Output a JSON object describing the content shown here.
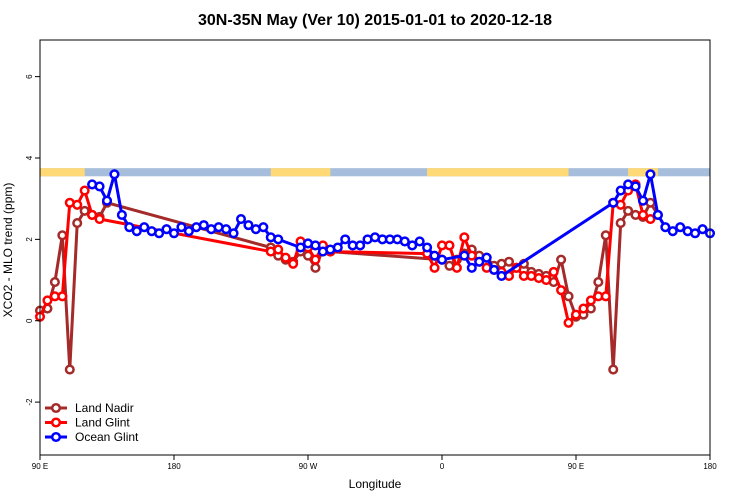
{
  "chart_data": {
    "type": "line",
    "title": "30N-35N May (Ver 10)   2015-01-01 to 2020-12-18",
    "xlabel": "Longitude",
    "ylabel": "XCO2 - MLO trend (ppm)",
    "xlim": [
      0,
      450
    ],
    "ylim": [
      -3.3,
      6.9
    ],
    "x_ticks": [
      0,
      90,
      180,
      270,
      360,
      450
    ],
    "x_tick_labels": [
      "90 E",
      "180",
      "90 W",
      "0",
      "90 E",
      "180"
    ],
    "y_ticks": [
      -2,
      0,
      2,
      4,
      6
    ],
    "y_tick_labels": [
      "-2",
      "0",
      "2",
      "4",
      "6"
    ],
    "legend_position": "bottom-left",
    "colors": {
      "land_nadir": "#a52a2a",
      "land_glint": "#ff0000",
      "ocean_glint": "#0000ff",
      "ocean_band": "#a6bddb",
      "land_band": "#ffd976"
    },
    "surface_band": {
      "y_range": [
        3.55,
        3.75
      ],
      "land_segments": [
        [
          0,
          30
        ],
        [
          155,
          195
        ],
        [
          260,
          355
        ],
        [
          395,
          415
        ]
      ]
    },
    "series": [
      {
        "name": "Land Nadir",
        "color": "#a52a2a",
        "x": [
          0,
          5,
          10,
          15,
          20,
          25,
          30,
          35,
          40,
          45,
          155,
          160,
          165,
          170,
          175,
          180,
          185,
          190,
          195,
          270,
          275,
          280,
          285,
          290,
          295,
          300,
          305,
          310,
          315,
          320,
          325,
          330,
          335,
          340,
          345,
          350,
          355,
          360,
          365,
          370,
          375,
          380,
          385,
          390,
          395,
          400,
          405,
          410,
          415
        ],
        "values": [
          0.25,
          0.3,
          0.95,
          2.1,
          -1.2,
          2.4,
          2.7,
          2.6,
          2.55,
          2.9,
          1.8,
          1.6,
          1.5,
          1.45,
          1.7,
          1.6,
          1.3,
          1.75,
          1.7,
          1.5,
          1.35,
          1.5,
          1.65,
          1.75,
          1.6,
          1.55,
          1.35,
          1.4,
          1.45,
          1.3,
          1.4,
          1.2,
          1.15,
          1.1,
          0.95,
          1.5,
          0.6,
          0.1,
          0.15,
          0.3,
          0.95,
          2.1,
          -1.2,
          2.4,
          2.7,
          2.6,
          2.55,
          2.9,
          2.6
        ]
      },
      {
        "name": "Land Glint",
        "color": "#ff0000",
        "x": [
          0,
          5,
          10,
          15,
          20,
          25,
          30,
          35,
          40,
          155,
          160,
          165,
          170,
          175,
          180,
          185,
          190,
          195,
          260,
          265,
          270,
          275,
          280,
          285,
          290,
          295,
          300,
          305,
          310,
          315,
          320,
          325,
          330,
          335,
          340,
          345,
          350,
          355,
          360,
          365,
          370,
          375,
          380,
          385,
          390,
          395,
          400,
          405,
          410
        ],
        "values": [
          0.1,
          0.5,
          0.6,
          0.6,
          2.9,
          2.85,
          3.2,
          2.6,
          2.5,
          1.7,
          1.75,
          1.55,
          1.4,
          1.95,
          1.8,
          1.5,
          1.85,
          1.7,
          1.65,
          1.3,
          1.85,
          1.85,
          1.3,
          2.05,
          1.6,
          1.45,
          1.3,
          1.25,
          1.2,
          1.1,
          1.3,
          1.1,
          1.1,
          1.05,
          1.0,
          1.2,
          0.75,
          -0.05,
          0.15,
          0.3,
          0.5,
          0.6,
          0.6,
          2.9,
          2.85,
          3.2,
          3.35,
          2.6,
          2.5
        ]
      },
      {
        "name": "Ocean Glint",
        "color": "#0000ff",
        "x": [
          35,
          40,
          45,
          50,
          55,
          60,
          65,
          70,
          75,
          80,
          85,
          90,
          95,
          100,
          105,
          110,
          115,
          120,
          125,
          130,
          135,
          140,
          145,
          150,
          155,
          160,
          175,
          180,
          185,
          190,
          195,
          200,
          205,
          210,
          215,
          220,
          225,
          230,
          235,
          240,
          245,
          250,
          255,
          260,
          265,
          270,
          285,
          290,
          295,
          300,
          305,
          310,
          385,
          390,
          395,
          400,
          405,
          410,
          415,
          420,
          425,
          430,
          435,
          440,
          445,
          450
        ],
        "values": [
          3.35,
          3.3,
          2.95,
          3.6,
          2.6,
          2.3,
          2.2,
          2.3,
          2.2,
          2.15,
          2.25,
          2.15,
          2.3,
          2.2,
          2.3,
          2.35,
          2.25,
          2.3,
          2.25,
          2.15,
          2.5,
          2.35,
          2.25,
          2.3,
          2.05,
          2.0,
          1.8,
          1.9,
          1.85,
          1.7,
          1.75,
          1.8,
          2.0,
          1.85,
          1.85,
          2.0,
          2.05,
          2.0,
          2.0,
          2.0,
          1.95,
          1.85,
          1.95,
          1.8,
          1.6,
          1.5,
          1.6,
          1.3,
          1.45,
          1.55,
          1.25,
          1.1,
          2.9,
          3.2,
          3.35,
          3.3,
          2.95,
          3.6,
          2.6,
          2.3,
          2.2,
          2.3,
          2.2,
          2.15,
          2.25,
          2.15
        ]
      }
    ]
  }
}
